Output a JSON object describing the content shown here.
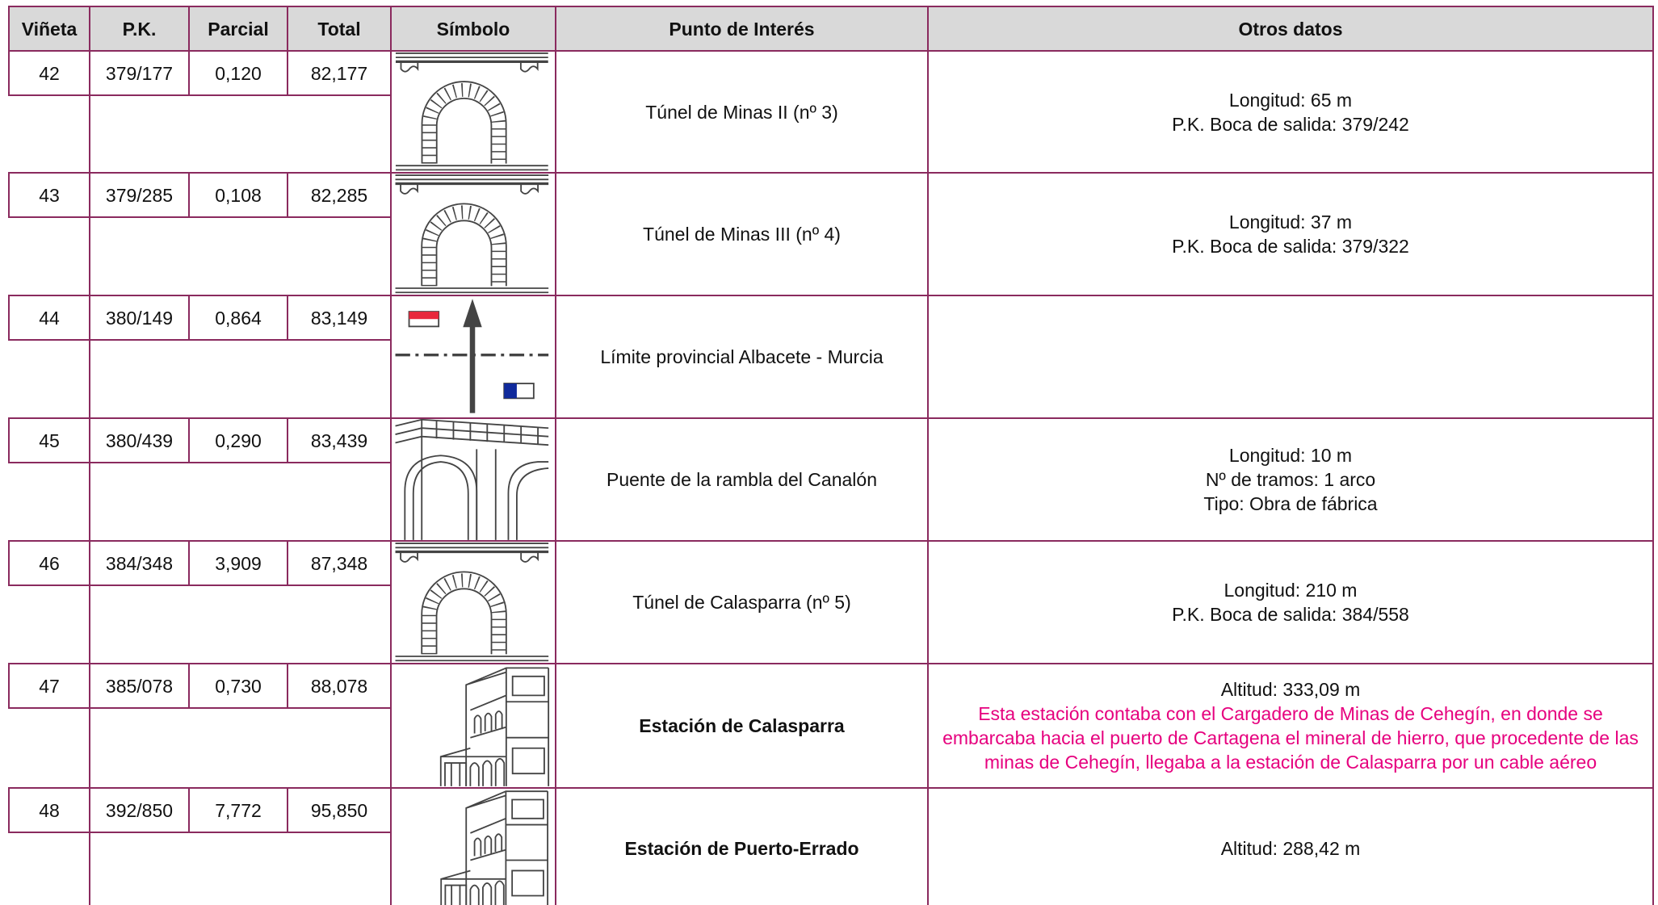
{
  "table": {
    "header": [
      "Viñeta",
      "P.K.",
      "Parcial",
      "Total",
      "Símbolo",
      "Punto de Interés",
      "Otros datos"
    ],
    "rows": [
      {
        "vineta": "42",
        "pk": "379/177",
        "parcial": "0,120",
        "total": "82,177",
        "punto": "Túnel de Minas II (nº 3)",
        "otros": [
          "Longitud: 65 m",
          "P.K. Boca de salida: 379/242"
        ]
      },
      {
        "vineta": "43",
        "pk": "379/285",
        "parcial": "0,108",
        "total": "82,285",
        "punto": "Túnel de Minas III (nº 4)",
        "otros": [
          "Longitud: 37 m",
          "P.K. Boca de salida: 379/322"
        ]
      },
      {
        "vineta": "44",
        "pk": "380/149",
        "parcial": "0,864",
        "total": "83,149",
        "punto": "Límite provincial Albacete - Murcia",
        "otros": []
      },
      {
        "vineta": "45",
        "pk": "380/439",
        "parcial": "0,290",
        "total": "83,439",
        "punto": "Puente de la rambla del Canalón",
        "otros": [
          "Longitud: 10 m",
          "Nº de tramos: 1 arco",
          "Tipo: Obra de fábrica"
        ]
      },
      {
        "vineta": "46",
        "pk": "384/348",
        "parcial": "3,909",
        "total": "87,348",
        "punto": "Túnel de Calasparra (nº 5)",
        "otros": [
          "Longitud: 210 m",
          "P.K. Boca de salida: 384/558"
        ]
      },
      {
        "vineta": "47",
        "pk": "385/078",
        "parcial": "0,730",
        "total": "88,078",
        "punto": "Estación de Calasparra",
        "bold": true,
        "otros": [
          "Altitud: 333,09 m"
        ],
        "nota": "Esta estación contaba con el Cargadero de Minas de Cehegín, en donde se embarcaba hacia el puerto de Cartagena el mineral de hierro, que procedente de las minas de Cehegín, llegaba a la estación de Calasparra por un cable aéreo"
      },
      {
        "vineta": "48",
        "pk": "392/850",
        "parcial": "7,772",
        "total": "95,850",
        "punto": "Estación de Puerto-Errado",
        "bold": true,
        "otros": [
          "Altitud: 288,42 m"
        ]
      }
    ]
  }
}
